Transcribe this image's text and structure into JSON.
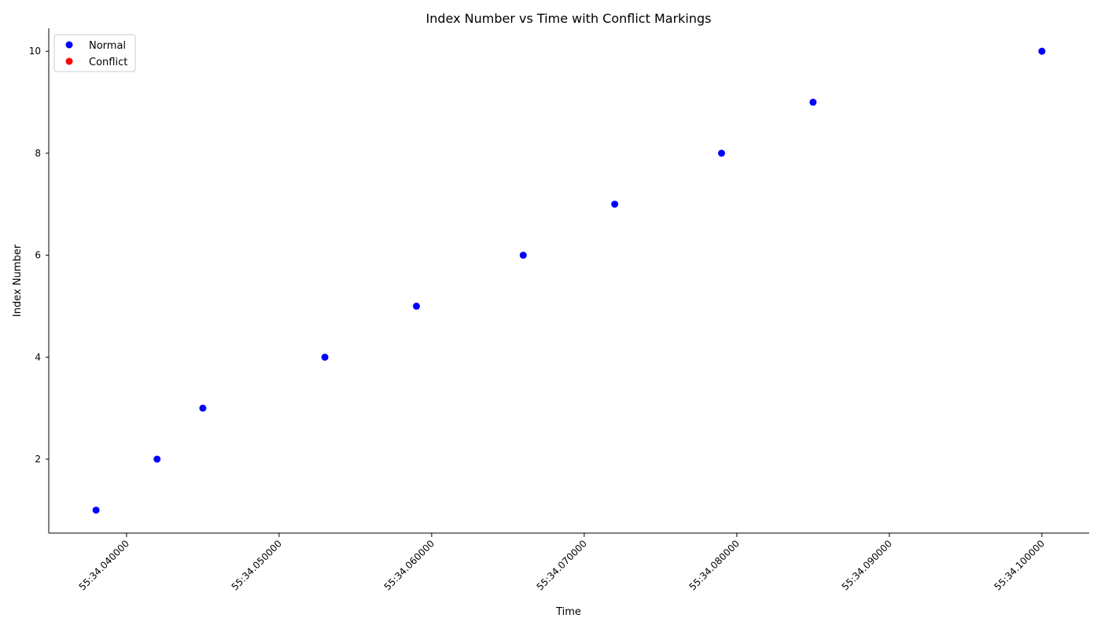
{
  "chart_data": {
    "type": "scatter",
    "title": "Index Number vs Time with Conflict Markings",
    "xlabel": "Time",
    "ylabel": "Index Number",
    "x_ticks": [
      {
        "value": 0.04,
        "label": "55:34.040000"
      },
      {
        "value": 0.05,
        "label": "55:34.050000"
      },
      {
        "value": 0.06,
        "label": "55:34.060000"
      },
      {
        "value": 0.07,
        "label": "55:34.070000"
      },
      {
        "value": 0.08,
        "label": "55:34.080000"
      },
      {
        "value": 0.09,
        "label": "55:34.090000"
      },
      {
        "value": 0.1,
        "label": "55:34.100000"
      }
    ],
    "y_ticks": [
      2,
      4,
      6,
      8,
      10
    ],
    "xlim": [
      0.0349,
      0.1031
    ],
    "ylim": [
      0.55,
      10.45
    ],
    "grid": false,
    "legend": {
      "placement": "top-left",
      "entries": [
        {
          "name": "Normal",
          "color": "#0000ff"
        },
        {
          "name": "Conflict",
          "color": "#ff0000"
        }
      ]
    },
    "series": [
      {
        "name": "Normal",
        "color": "#0000ff",
        "points": [
          {
            "x": 0.038,
            "y": 1
          },
          {
            "x": 0.042,
            "y": 2
          },
          {
            "x": 0.045,
            "y": 3
          },
          {
            "x": 0.053,
            "y": 4
          },
          {
            "x": 0.059,
            "y": 5
          },
          {
            "x": 0.066,
            "y": 6
          },
          {
            "x": 0.072,
            "y": 7
          },
          {
            "x": 0.079,
            "y": 8
          },
          {
            "x": 0.085,
            "y": 9
          },
          {
            "x": 0.1,
            "y": 10
          }
        ]
      },
      {
        "name": "Conflict",
        "color": "#ff0000",
        "points": []
      }
    ]
  }
}
